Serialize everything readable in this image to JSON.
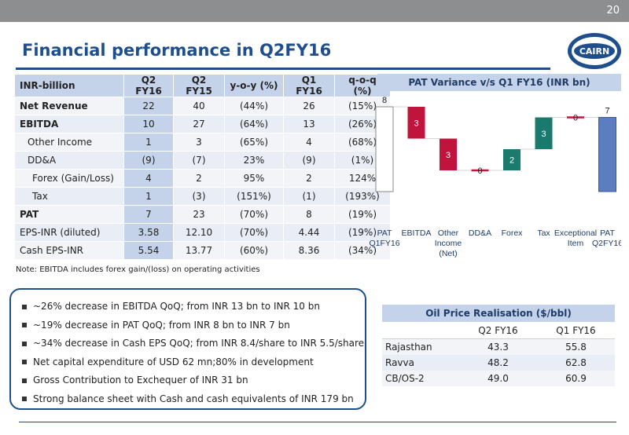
{
  "page": {
    "number": "20",
    "title": "Financial performance in Q2FY16",
    "logo_text": "CAIRN"
  },
  "fin_table": {
    "headers": [
      "INR-billion",
      "Q2 FY16",
      "Q2 FY15",
      "y-o-y (%)",
      "Q1 FY16",
      "q-o-q (%)"
    ],
    "rows": [
      {
        "label": "Net Revenue",
        "bold": true,
        "cells": [
          "22",
          "40",
          "(44%)",
          "26",
          "(15%)"
        ]
      },
      {
        "label": "EBITDA",
        "bold": true,
        "cells": [
          "10",
          "27",
          "(64%)",
          "13",
          "(26%)"
        ]
      },
      {
        "label": "Other Income",
        "cells": [
          "1",
          "3",
          "(65%)",
          "4",
          "(68%)"
        ]
      },
      {
        "label": "DD&A",
        "cells": [
          "(9)",
          "(7)",
          "23%",
          "(9)",
          "(1%)"
        ]
      },
      {
        "label": "Forex (Gain/Loss)",
        "cells": [
          "4",
          "2",
          "95%",
          "2",
          "124%"
        ]
      },
      {
        "label": "Tax",
        "cells": [
          "1",
          "(3)",
          "(151%)",
          "(1)",
          "(193%)"
        ]
      },
      {
        "label": "PAT",
        "bold": true,
        "cells": [
          "7",
          "23",
          "(70%)",
          "8",
          "(19%)"
        ]
      },
      {
        "label": "EPS-INR (diluted)",
        "cells": [
          "3.58",
          "12.10",
          "(70%)",
          "4.44",
          "(19%)"
        ]
      },
      {
        "label": "Cash EPS-INR",
        "cells": [
          "5.54",
          "13.77",
          "(60%)",
          "8.36",
          "(34%)"
        ]
      }
    ]
  },
  "note": "Note: EBITDA includes forex gain/(loss) on operating activities",
  "bullets": [
    "~26% decrease in EBITDA QoQ; from INR 13 bn to INR 10 bn",
    "~19% decrease in PAT QoQ; from INR 8 bn to INR 7 bn",
    "~34% decrease in Cash EPS QoQ; from INR 8.4/share to INR 5.5/share",
    "Net capital expenditure of USD 62 mn;80% in development",
    "Gross Contribution to Exchequer of INR 31 bn",
    "Strong balance sheet with Cash and cash equivalents of INR 179 bn"
  ],
  "chart_data": {
    "type": "bar",
    "title": "PAT Variance v/s Q1 FY16 (INR bn)",
    "categories": [
      "PAT Q1FY16",
      "EBITDA",
      "Other Income (Net)",
      "DD&A",
      "Forex",
      "Tax",
      "Exceptional Item",
      "PAT Q2FY16"
    ],
    "values": [
      8,
      -3,
      -3,
      0,
      2,
      3,
      0,
      7
    ],
    "data_labels": [
      "8",
      "3",
      "3",
      "0",
      "2",
      "3",
      "0",
      "7"
    ],
    "colors": {
      "total_start": "#ffffff",
      "decrease": "#c0143c",
      "increase": "#1a7a6e",
      "total_end": "#5b7ec0"
    }
  },
  "oil_table": {
    "title": "Oil Price Realisation ($/bbl)",
    "headers": [
      "",
      "Q2 FY16",
      "Q1 FY16"
    ],
    "rows": [
      {
        "label": "Rajasthan",
        "cells": [
          "43.3",
          "55.8"
        ]
      },
      {
        "label": "Ravva",
        "cells": [
          "48.2",
          "62.8"
        ]
      },
      {
        "label": "CB/OS-2",
        "cells": [
          "49.0",
          "60.9"
        ]
      }
    ]
  }
}
